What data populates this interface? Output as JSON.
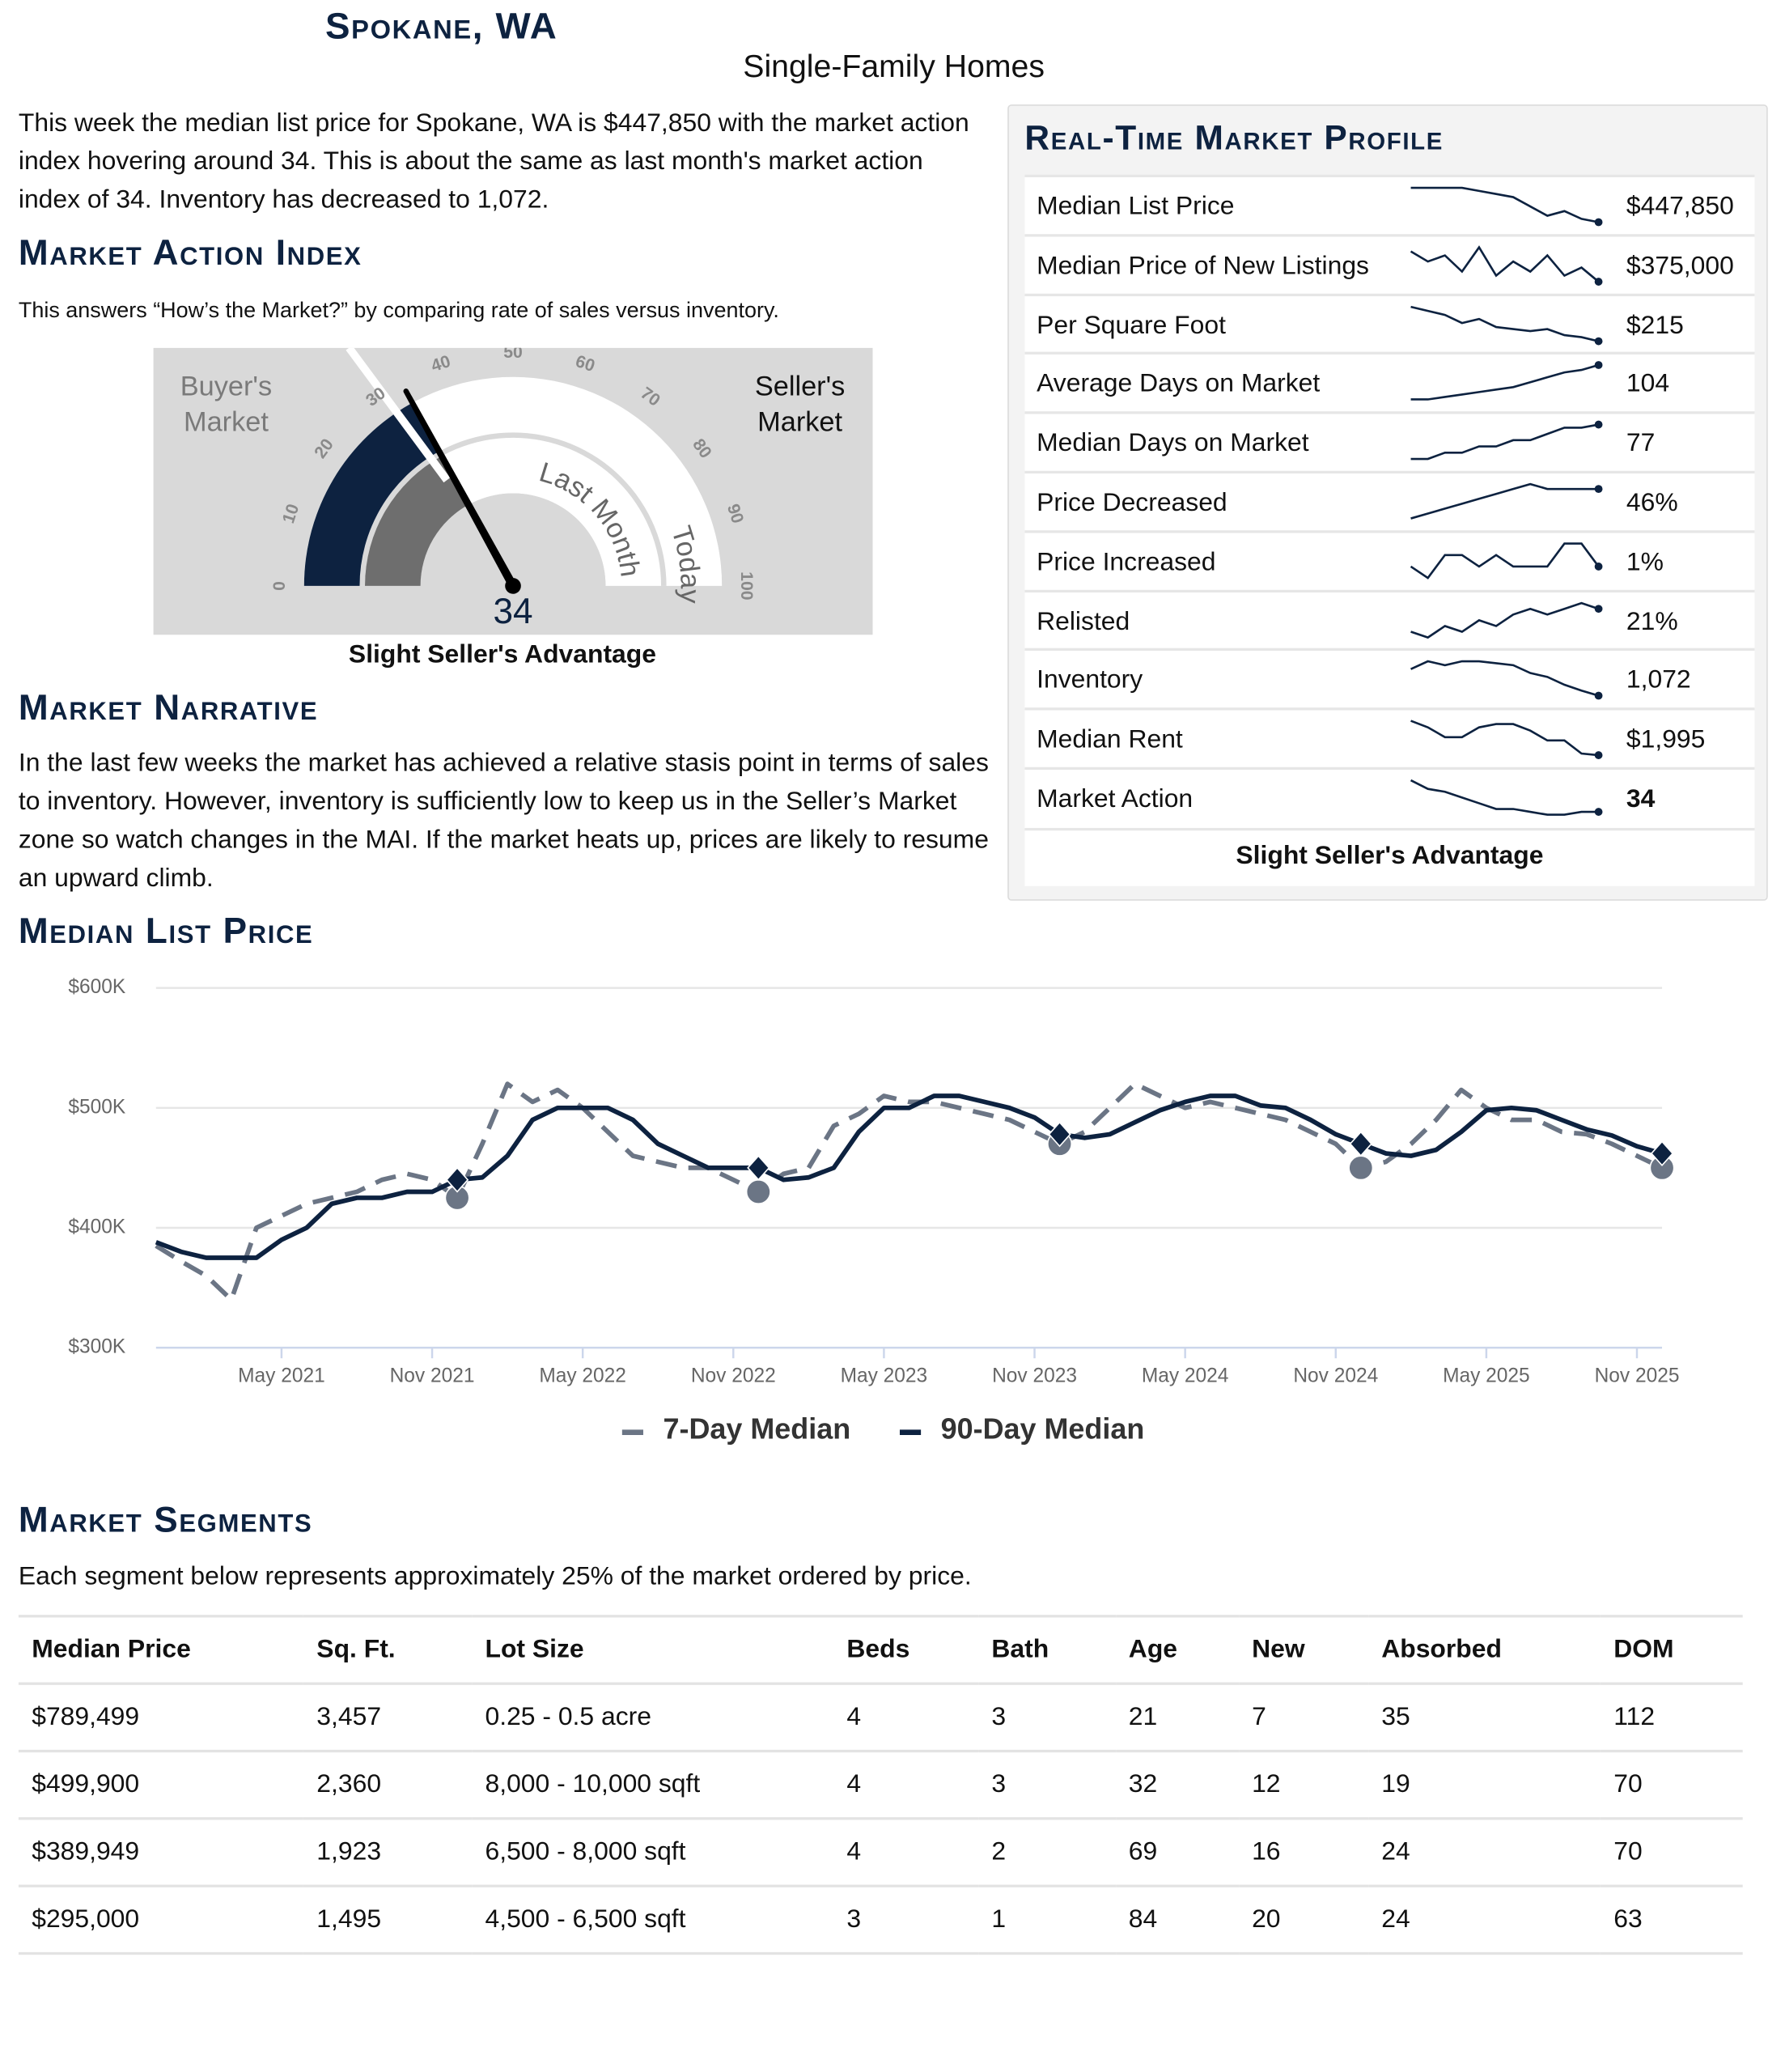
{
  "header": {
    "title": "Spokane, WA",
    "subtitle": "Single-Family Homes"
  },
  "intro": "This week the median list price for Spokane, WA is $447,850 with the market action index hovering around 34. This is about the same as last month's market action index of 34. Inventory has decreased to 1,072.",
  "market_action_index": {
    "heading": "Market Action Index",
    "description": "This answers “How’s the Market?” by comparing rate of sales versus inventory.",
    "gauge": {
      "buyers_label": "Buyer's Market",
      "sellers_label": "Seller's Market",
      "ticks": [
        0,
        10,
        20,
        30,
        40,
        50,
        60,
        70,
        80,
        90,
        100
      ],
      "value": 34,
      "last_month": 34,
      "last_month_label": "Last Month",
      "today_label": "Today",
      "verdict": "Slight Seller's Advantage"
    }
  },
  "narrative": {
    "heading": "Market Narrative",
    "text": "In the last few weeks the market has achieved a relative stasis point in terms of sales to inventory. However, inventory is sufficiently low to keep us in the Seller’s Market zone so watch changes in the MAI. If the market heats up, prices are likely to resume an upward climb."
  },
  "profile": {
    "heading": "Real-Time Market Profile",
    "rows": [
      {
        "label": "Median List Price",
        "value": "$447,850",
        "trend": [
          470000,
          470000,
          470000,
          470000,
          468000,
          466000,
          464000,
          458000,
          452000,
          455000,
          450000,
          447850
        ]
      },
      {
        "label": "Median Price of New Listings",
        "value": "$375,000",
        "trend": [
          390000,
          385000,
          388000,
          380000,
          392000,
          378000,
          385000,
          380000,
          388000,
          378000,
          382000,
          375000
        ]
      },
      {
        "label": "Per Square Foot",
        "value": "$215",
        "trend": [
          232,
          230,
          228,
          224,
          226,
          222,
          221,
          220,
          221,
          218,
          217,
          215
        ]
      },
      {
        "label": "Average Days on Market",
        "value": "104",
        "trend": [
          90,
          90,
          91,
          92,
          93,
          94,
          95,
          97,
          99,
          101,
          102,
          104
        ]
      },
      {
        "label": "Median Days on Market",
        "value": "77",
        "trend": [
          66,
          66,
          68,
          68,
          70,
          70,
          72,
          72,
          74,
          76,
          76,
          77
        ]
      },
      {
        "label": "Price Decreased",
        "value": "46%",
        "trend": [
          40,
          41,
          42,
          43,
          44,
          45,
          46,
          47,
          46,
          46,
          46,
          46
        ]
      },
      {
        "label": "Price Increased",
        "value": "1%",
        "trend": [
          1,
          0,
          2,
          2,
          1,
          2,
          1,
          1,
          1,
          3,
          3,
          1
        ]
      },
      {
        "label": "Relisted",
        "value": "21%",
        "trend": [
          17,
          16,
          18,
          17,
          19,
          18,
          20,
          21,
          20,
          21,
          22,
          21
        ]
      },
      {
        "label": "Inventory",
        "value": "1,072",
        "trend": [
          1140,
          1160,
          1150,
          1160,
          1160,
          1155,
          1150,
          1130,
          1120,
          1100,
          1085,
          1072
        ]
      },
      {
        "label": "Median Rent",
        "value": "$1,995",
        "trend": [
          2100,
          2080,
          2050,
          2050,
          2080,
          2090,
          2090,
          2070,
          2040,
          2040,
          2000,
          1995
        ]
      },
      {
        "label": "Market Action",
        "value": "34",
        "trend": [
          45,
          42,
          41,
          39,
          37,
          35,
          35,
          34,
          33,
          33,
          34,
          34
        ]
      }
    ],
    "verdict": "Slight Seller's Advantage"
  },
  "median_list_price_heading": "Median List Price",
  "chart_data": {
    "type": "line",
    "x": [
      "Dec 2020",
      "Jan 2021",
      "Feb 2021",
      "Mar 2021",
      "Apr 2021",
      "May 2021",
      "Jun 2021",
      "Jul 2021",
      "Aug 2021",
      "Sep 2021",
      "Oct 2021",
      "Nov 2021",
      "Dec 2021",
      "Jan 2022",
      "Feb 2022",
      "Mar 2022",
      "Apr 2022",
      "May 2022",
      "Jun 2022",
      "Jul 2022",
      "Aug 2022",
      "Sep 2022",
      "Oct 2022",
      "Nov 2022",
      "Dec 2022",
      "Jan 2023",
      "Feb 2023",
      "Mar 2023",
      "Apr 2023",
      "May 2023",
      "Jun 2023",
      "Jul 2023",
      "Aug 2023",
      "Sep 2023",
      "Oct 2023",
      "Nov 2023",
      "Dec 2023",
      "Jan 2024",
      "Feb 2024",
      "Mar 2024",
      "Apr 2024",
      "May 2024",
      "Jun 2024",
      "Jul 2024",
      "Aug 2024",
      "Sep 2024",
      "Oct 2024",
      "Nov 2024",
      "Dec 2024",
      "Jan 2025",
      "Feb 2025",
      "Mar 2025",
      "Apr 2025",
      "May 2025",
      "Jun 2025",
      "Jul 2025",
      "Aug 2025",
      "Sep 2025",
      "Oct 2025",
      "Nov 2025",
      "Dec 2025"
    ],
    "series": [
      {
        "name": "7-Day Median",
        "color": "#6b7585",
        "dashed": true,
        "marker": "circle",
        "values": [
          385000,
          372000,
          360000,
          340000,
          400000,
          410000,
          420000,
          425000,
          430000,
          440000,
          445000,
          440000,
          425000,
          470000,
          520000,
          505000,
          515000,
          500000,
          480000,
          460000,
          455000,
          450000,
          450000,
          440000,
          430000,
          445000,
          450000,
          485000,
          495000,
          510000,
          505000,
          505000,
          500000,
          495000,
          490000,
          480000,
          470000,
          480000,
          500000,
          520000,
          510000,
          500000,
          505000,
          500000,
          495000,
          490000,
          480000,
          470000,
          450000,
          455000,
          470000,
          490000,
          515000,
          500000,
          490000,
          490000,
          480000,
          478000,
          470000,
          460000,
          450000
        ]
      },
      {
        "name": "90-Day Median",
        "color": "#0d2240",
        "dashed": false,
        "marker": "diamond",
        "values": [
          388000,
          380000,
          375000,
          375000,
          375000,
          390000,
          400000,
          420000,
          425000,
          425000,
          430000,
          430000,
          440000,
          442000,
          460000,
          490000,
          500000,
          500000,
          500000,
          490000,
          470000,
          460000,
          450000,
          450000,
          450000,
          440000,
          442000,
          450000,
          480000,
          500000,
          500000,
          510000,
          510000,
          505000,
          500000,
          492000,
          478000,
          475000,
          478000,
          488000,
          498000,
          505000,
          510000,
          510000,
          502000,
          500000,
          490000,
          478000,
          470000,
          462000,
          460000,
          465000,
          480000,
          498000,
          500000,
          498000,
          490000,
          482000,
          477000,
          468000,
          462000
        ]
      }
    ],
    "ylim": [
      300000,
      600000
    ],
    "yticks": [
      {
        "value": 300000,
        "label": "$300K"
      },
      {
        "value": 400000,
        "label": "$400K"
      },
      {
        "value": 500000,
        "label": "$500K"
      },
      {
        "value": 600000,
        "label": "$600K"
      }
    ],
    "xticks": [
      "May 2021",
      "Nov 2021",
      "May 2022",
      "Nov 2022",
      "May 2023",
      "Nov 2023",
      "May 2024",
      "Nov 2024",
      "May 2025",
      "Nov 2025"
    ],
    "grid": true,
    "legend": "bottom"
  },
  "segments": {
    "heading": "Market Segments",
    "description": "Each segment below represents approximately 25% of the market ordered by price.",
    "table": {
      "columns": [
        "Median Price",
        "Sq. Ft.",
        "Lot Size",
        "Beds",
        "Bath",
        "Age",
        "New",
        "Absorbed",
        "DOM"
      ],
      "rows": [
        [
          "$789,499",
          "3,457",
          "0.25 - 0.5 acre",
          "4",
          "3",
          "21",
          "7",
          "35",
          "112"
        ],
        [
          "$499,900",
          "2,360",
          "8,000 - 10,000 sqft",
          "4",
          "3",
          "32",
          "12",
          "19",
          "70"
        ],
        [
          "$389,949",
          "1,923",
          "6,500 - 8,000 sqft",
          "4",
          "2",
          "69",
          "16",
          "24",
          "70"
        ],
        [
          "$295,000",
          "1,495",
          "4,500 - 6,500 sqft",
          "3",
          "1",
          "84",
          "20",
          "24",
          "63"
        ]
      ]
    }
  }
}
